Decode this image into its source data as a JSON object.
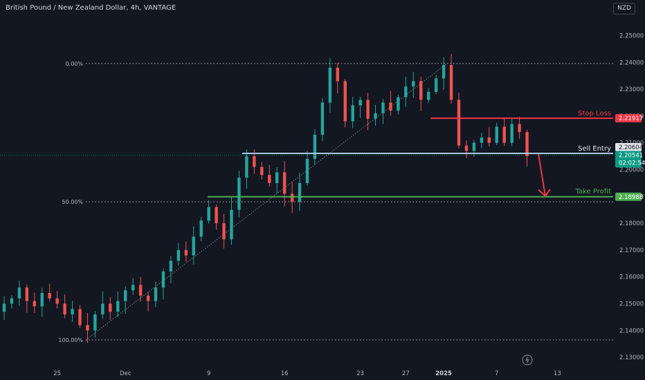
{
  "header": {
    "title": "British Pound / New Zealand Dollar, 4h, VANTAGE",
    "currency": "NZD"
  },
  "colors": {
    "background": "#131722",
    "up": "#26a69a",
    "down": "#ef5350",
    "stop": "#f23645",
    "entry": "#a7c8f2",
    "profit": "#4caf50",
    "current": "#089981"
  },
  "chart_data": {
    "type": "candlestick",
    "symbol": "GBPNZD",
    "timeframe": "4h",
    "grid": false,
    "ylim": [
      2.1285,
      2.2563
    ],
    "y_ticks": [
      "2.25000",
      "2.24000",
      "2.23000",
      "2.22000",
      "2.21000",
      "2.20000",
      "2.19000",
      "2.18000",
      "2.17000",
      "2.16000",
      "2.15000",
      "2.14000",
      "2.13000"
    ],
    "x_ticks": [
      {
        "label": "25",
        "index": 7
      },
      {
        "label": "Dec",
        "index": 16,
        "bold": false
      },
      {
        "label": "9",
        "index": 27
      },
      {
        "label": "16",
        "index": 37
      },
      {
        "label": "23",
        "index": 47
      },
      {
        "label": "27",
        "index": 53
      },
      {
        "label": "2025",
        "index": 58,
        "bold": true
      },
      {
        "label": "7",
        "index": 65
      },
      {
        "label": "13",
        "index": 73
      }
    ],
    "candles_close": [
      2.15,
      2.152,
      2.156,
      2.151,
      2.149,
      2.154,
      2.152,
      2.15,
      2.146,
      2.148,
      2.142,
      2.14,
      2.146,
      2.15,
      2.147,
      2.151,
      2.155,
      2.157,
      2.153,
      2.151,
      2.156,
      2.162,
      2.166,
      2.17,
      2.168,
      2.175,
      2.181,
      2.186,
      2.18,
      2.174,
      2.185,
      2.197,
      2.205,
      2.201,
      2.198,
      2.195,
      2.199,
      2.191,
      2.188,
      2.195,
      2.204,
      2.213,
      2.225,
      2.238,
      2.233,
      2.218,
      2.224,
      2.226,
      2.219,
      2.221,
      2.225,
      2.222,
      2.227,
      2.231,
      2.233,
      2.226,
      2.229,
      2.234,
      2.239,
      2.226,
      2.209,
      2.207,
      2.21,
      2.212,
      2.21,
      2.216,
      2.21,
      2.217,
      2.214,
      2.205
    ],
    "fib_levels": [
      {
        "label": "0.00%",
        "value": 2.2396
      },
      {
        "label": "50.00%",
        "value": 2.188
      },
      {
        "label": "100.00%",
        "value": 2.1365
      }
    ],
    "levels": {
      "stop_loss": {
        "label": "Stop Loss",
        "value": "2.21917"
      },
      "sell_entry": {
        "label": "Sell Entry",
        "value": "2.20604"
      },
      "take_profit": {
        "label": "Take Profit",
        "value": "2.18988"
      },
      "current_price": {
        "value": "2.20541",
        "countdown": "02:02:54"
      }
    }
  }
}
